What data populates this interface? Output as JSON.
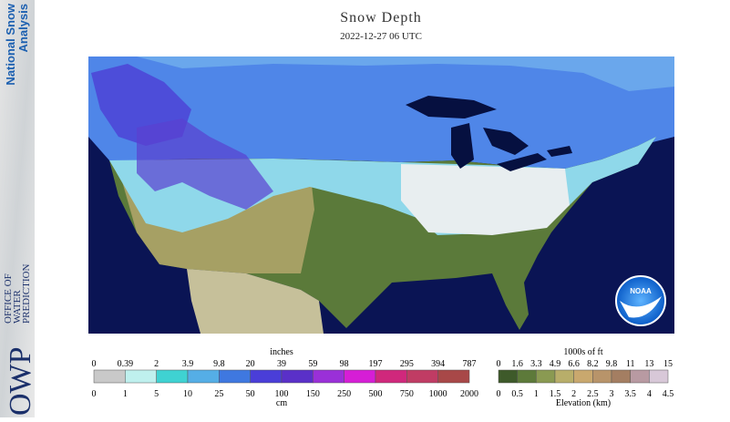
{
  "header": {
    "title": "Snow Depth",
    "date": "2022-12-27 06 UTC"
  },
  "sidebar": {
    "product": [
      "National Snow",
      "Analysis"
    ],
    "office": [
      "OFFICE OF",
      "WATER",
      "PREDICTION"
    ],
    "logo": "OWP"
  },
  "map": {
    "badge": "NOAA"
  },
  "legend_snow": {
    "top_unit": "inches",
    "top_labels": [
      0,
      0.39,
      2,
      3.9,
      9.8,
      20,
      39,
      59,
      98,
      197,
      295,
      394,
      787
    ],
    "bottom_unit": "cm",
    "bottom_labels": [
      0,
      1,
      5,
      10,
      25,
      50,
      100,
      150,
      250,
      500,
      750,
      1000,
      2000
    ],
    "colors": [
      "#c9c9c9",
      "#bff0ee",
      "#3fd2d2",
      "#55aee6",
      "#3f78e0",
      "#4a3ed8",
      "#5a30c8",
      "#9a30d8",
      "#d61ed6",
      "#d0287c",
      "#c03c64",
      "#a84848"
    ]
  },
  "legend_elevation": {
    "top_unit": "1000s of ft",
    "top_labels": [
      0,
      1.6,
      3.3,
      4.9,
      6.6,
      8.2,
      9.8,
      11,
      13,
      15
    ],
    "bottom_unit": "Elevation (km)",
    "bottom_labels": [
      0,
      0.5,
      1,
      1.5,
      2,
      2.5,
      3,
      3.5,
      4,
      4.5
    ],
    "colors": [
      "#3e5a2a",
      "#5d7a3a",
      "#8a9a52",
      "#b8ae6a",
      "#c9a86e",
      "#b8946a",
      "#a47e62",
      "#b89aa2",
      "#d8c8d8"
    ]
  }
}
